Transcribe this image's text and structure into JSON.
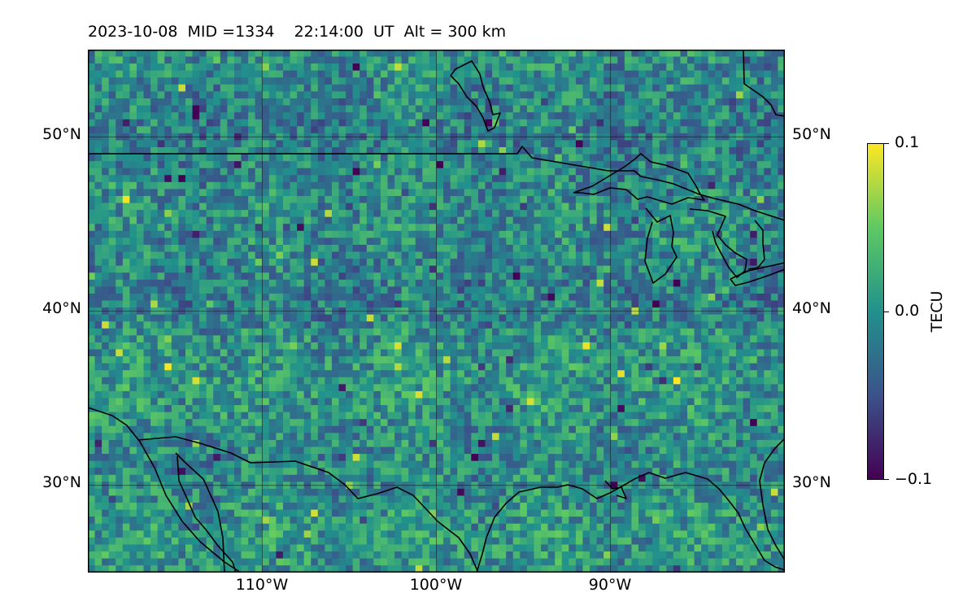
{
  "title": "2023-10-08  MID =1334    22:14:00  UT  Alt = 300 km",
  "map": {
    "lon_range": [
      -120,
      -80
    ],
    "lat_range": [
      25,
      55
    ],
    "parallels": [
      {
        "lat": 50,
        "label": "50°N"
      },
      {
        "lat": 40,
        "label": "40°N"
      },
      {
        "lat": 30,
        "label": "30°N"
      }
    ],
    "meridians": [
      {
        "lon": -110,
        "label": "110°W"
      },
      {
        "lon": -100,
        "label": "100°W"
      },
      {
        "lon": -90,
        "label": "90°W"
      }
    ]
  },
  "colorbar": {
    "label": "TECU",
    "colormap": "viridis",
    "ticks": [
      {
        "value": 0.1,
        "label": "0.1"
      },
      {
        "value": 0.0,
        "label": "0.0"
      },
      {
        "value": -0.1,
        "label": "−0.1"
      }
    ]
  }
}
